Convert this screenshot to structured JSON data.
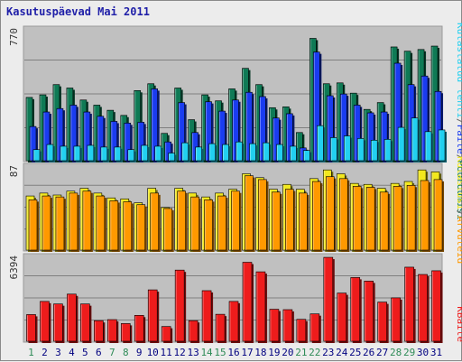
{
  "chart_title": "Kasutuspäevad Mai 2011",
  "colors": {
    "hits": "#0f7a55",
    "files": "#1a3cf0",
    "pages": "#22d0f0",
    "visits": "#f2e81e",
    "sites": "#ff9900",
    "kbytes": "#ee1c1c",
    "plot_bg": "#c0c0c0",
    "weekend_label": "#2e8b57",
    "weekday_label": "#000080"
  },
  "chart_data": [
    {
      "type": "bar",
      "panel": "top",
      "ymax_label": "770",
      "ylim": [
        0,
        770
      ],
      "categories": [
        "1",
        "2",
        "3",
        "4",
        "5",
        "6",
        "7",
        "8",
        "9",
        "10",
        "11",
        "12",
        "13",
        "14",
        "15",
        "16",
        "17",
        "18",
        "19",
        "20",
        "21",
        "22",
        "23",
        "24",
        "25",
        "26",
        "27",
        "28",
        "29",
        "30",
        "31"
      ],
      "legend": [
        {
          "text": "Pöördumisi",
          "color_key": "hits"
        },
        {
          "text": "/",
          "color_key": "sep"
        },
        {
          "text": "Faile",
          "color_key": "files"
        },
        {
          "text": "/",
          "color_key": "sep"
        },
        {
          "text": "Külastatud lehti",
          "color_key": "pages"
        }
      ],
      "series": [
        {
          "name": "Pöördumisi",
          "values": [
            375,
            390,
            450,
            430,
            360,
            330,
            300,
            270,
            415,
            455,
            165,
            430,
            245,
            390,
            355,
            425,
            545,
            450,
            315,
            320,
            170,
            720,
            455,
            460,
            400,
            305,
            345,
            670,
            645,
            655,
            675
          ]
        },
        {
          "name": "Faile",
          "values": [
            205,
            290,
            310,
            330,
            290,
            265,
            235,
            225,
            230,
            425,
            115,
            345,
            170,
            350,
            295,
            360,
            405,
            380,
            255,
            280,
            80,
            640,
            385,
            395,
            330,
            285,
            290,
            575,
            450,
            500,
            410
          ]
        },
        {
          "name": "Külastatud lehti",
          "values": [
            70,
            100,
            90,
            90,
            95,
            85,
            85,
            70,
            95,
            90,
            50,
            110,
            85,
            105,
            100,
            115,
            105,
            110,
            100,
            90,
            65,
            210,
            140,
            150,
            135,
            125,
            130,
            200,
            255,
            175,
            185
          ]
        }
      ]
    },
    {
      "type": "bar",
      "panel": "middle",
      "ymax_label": "87",
      "ylim": [
        0,
        87
      ],
      "legend": [
        {
          "text": "Arvuteid",
          "color_key": "sites"
        },
        {
          "text": "/",
          "color_key": "sep"
        },
        {
          "text": "Külastusi",
          "color_key": "visits"
        }
      ],
      "series": [
        {
          "name": "Külastusi",
          "values": [
            57,
            60,
            58,
            62,
            65,
            60,
            55,
            54,
            50,
            65,
            45,
            65,
            60,
            56,
            60,
            64,
            80,
            76,
            64,
            69,
            64,
            75,
            84,
            80,
            70,
            69,
            65,
            70,
            72,
            84,
            82
          ]
        },
        {
          "name": "Arvuteid",
          "values": [
            53,
            57,
            56,
            60,
            62,
            57,
            52,
            51,
            48,
            60,
            44,
            62,
            56,
            53,
            57,
            62,
            78,
            74,
            61,
            64,
            60,
            72,
            77,
            75,
            67,
            66,
            61,
            67,
            68,
            73,
            74
          ]
        }
      ]
    },
    {
      "type": "bar",
      "panel": "bottom",
      "ymax_label": "6394",
      "ylim": [
        0,
        6394
      ],
      "legend": [
        {
          "text": "KBaite",
          "color_key": "kbytes"
        }
      ],
      "series": [
        {
          "name": "KBaite",
          "values": [
            2080,
            3070,
            2880,
            3620,
            2880,
            1620,
            1700,
            1400,
            2020,
            3940,
            1180,
            5430,
            1620,
            3880,
            2100,
            3070,
            6020,
            5300,
            2480,
            2450,
            1720,
            2130,
            6390,
            3700,
            4870,
            4600,
            3020,
            3340,
            5650,
            5100,
            5380
          ]
        }
      ]
    }
  ]
}
